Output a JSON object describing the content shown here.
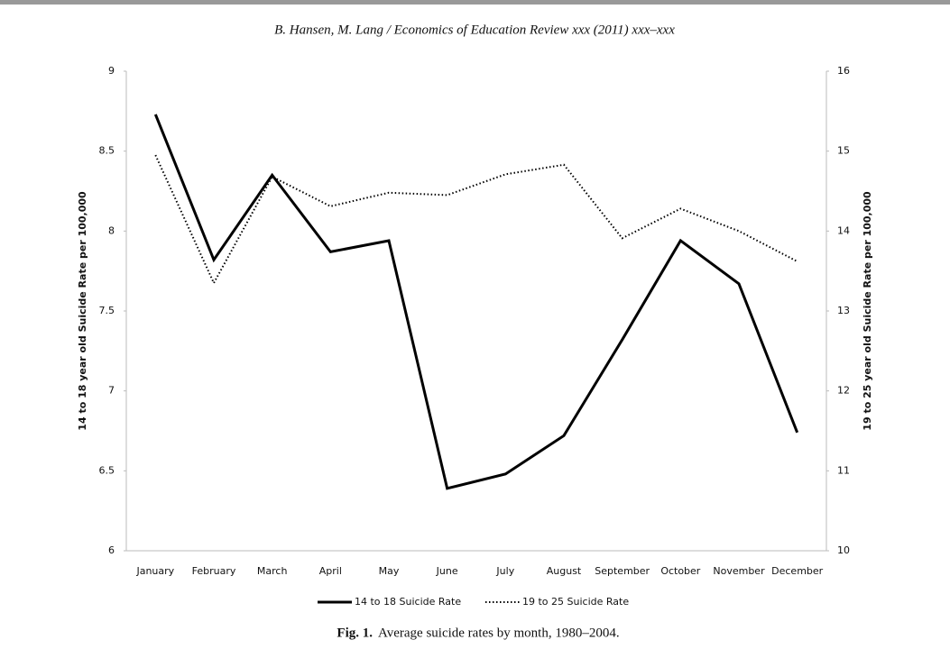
{
  "header": "B. Hansen, M. Lang / Economics of Education Review xxx (2011) xxx–xxx",
  "caption": {
    "label": "Fig. 1.",
    "text": "Average suicide rates by month, 1980–2004."
  },
  "chart_data": {
    "type": "line",
    "categories": [
      "January",
      "February",
      "March",
      "April",
      "May",
      "June",
      "July",
      "August",
      "September",
      "October",
      "November",
      "December"
    ],
    "series": [
      {
        "name": "14 to 18 Suicide Rate",
        "color": "#000000",
        "style": "solid",
        "values": [
          8.73,
          7.82,
          8.35,
          7.87,
          7.94,
          6.39,
          6.48,
          6.72,
          7.32,
          7.94,
          7.67,
          6.74
        ]
      },
      {
        "name": "19 to 25 Suicide Rate",
        "color": "#000000",
        "style": "dotted",
        "axis": "y2",
        "values": [
          14.95,
          13.35,
          14.68,
          14.31,
          14.48,
          14.45,
          14.71,
          14.83,
          13.91,
          14.28,
          14.0,
          13.62
        ]
      }
    ],
    "ylabel": "14 to 18 year old Suicide Rate per 100,000",
    "y2label": "19 to 25 year old Suicide Rate per 100,000",
    "ylim": [
      6,
      9
    ],
    "yticks": [
      6,
      6.5,
      7,
      7.5,
      8,
      8.5,
      9
    ],
    "y2lim": [
      10,
      16
    ],
    "y2ticks": [
      10,
      11,
      12,
      13,
      14,
      15,
      16
    ],
    "legend": "bottom"
  }
}
